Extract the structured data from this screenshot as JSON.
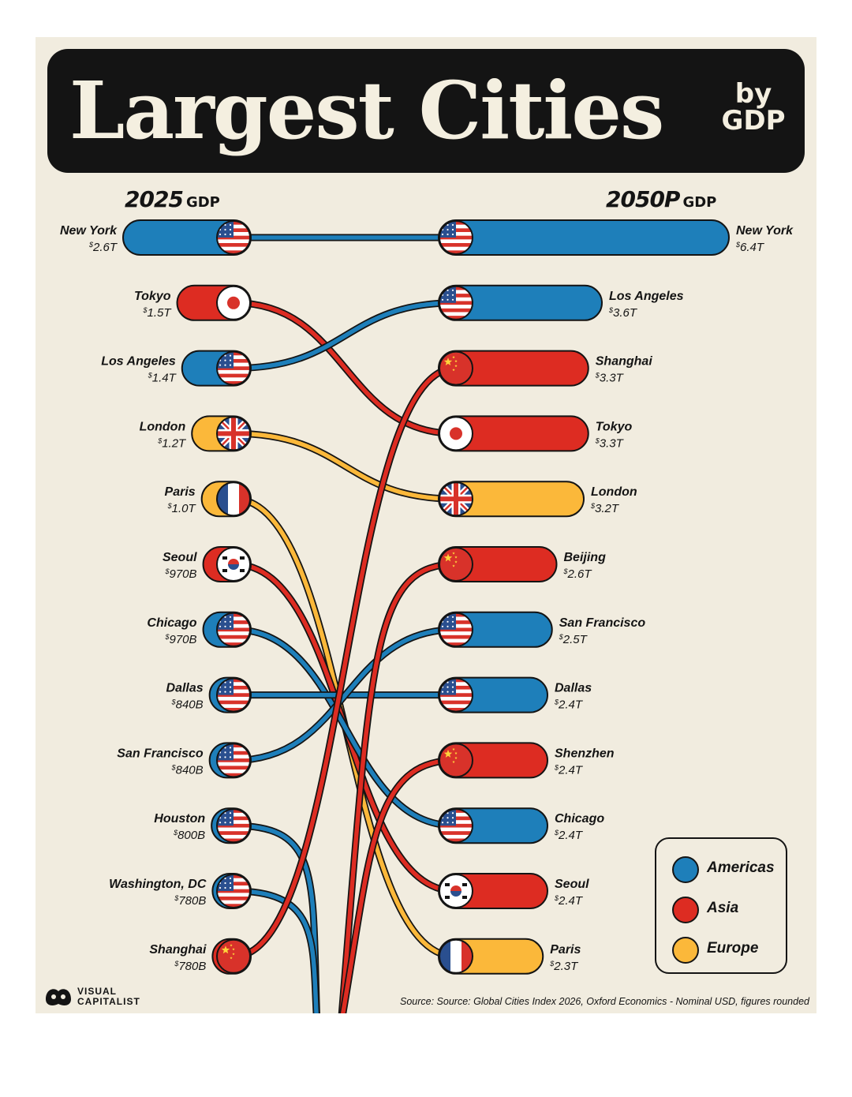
{
  "title": {
    "main": "Largest Cities",
    "sub_line1": "by",
    "sub_line2": "GDP"
  },
  "headers": {
    "left_year": "2025",
    "left_unit": "GDP",
    "right_year": "2050P",
    "right_unit": "GDP"
  },
  "colors": {
    "Americas": "#1e7fba",
    "Asia": "#dd2c22",
    "Europe": "#fbb83a"
  },
  "legend": [
    {
      "label": "Americas",
      "region": "Americas"
    },
    {
      "label": "Asia",
      "region": "Asia"
    },
    {
      "label": "Europe",
      "region": "Europe"
    }
  ],
  "source": "Source: Source: Global Cities Index 2026, Oxford Economics - Nominal USD, figures rounded",
  "brand": {
    "line1": "VISUAL",
    "line2": "CAPITALIST"
  },
  "chart_data": {
    "type": "bar",
    "title": "Largest Cities by GDP",
    "series_2025": [
      {
        "city": "New York",
        "value": 2.6,
        "label": "2.6T",
        "region": "Americas",
        "flag": "us-flag-icon"
      },
      {
        "city": "Tokyo",
        "value": 1.5,
        "label": "1.5T",
        "region": "Asia",
        "flag": "japan-flag-icon"
      },
      {
        "city": "Los Angeles",
        "value": 1.4,
        "label": "1.4T",
        "region": "Americas",
        "flag": "us-flag-icon"
      },
      {
        "city": "London",
        "value": 1.2,
        "label": "1.2T",
        "region": "Europe",
        "flag": "uk-flag-icon"
      },
      {
        "city": "Paris",
        "value": 1.0,
        "label": "1.0T",
        "region": "Europe",
        "flag": "france-flag-icon"
      },
      {
        "city": "Seoul",
        "value": 0.97,
        "label": "970B",
        "region": "Asia",
        "flag": "korea-flag-icon"
      },
      {
        "city": "Chicago",
        "value": 0.97,
        "label": "970B",
        "region": "Americas",
        "flag": "us-flag-icon"
      },
      {
        "city": "Dallas",
        "value": 0.84,
        "label": "840B",
        "region": "Americas",
        "flag": "us-flag-icon"
      },
      {
        "city": "San Francisco",
        "value": 0.84,
        "label": "840B",
        "region": "Americas",
        "flag": "us-flag-icon"
      },
      {
        "city": "Houston",
        "value": 0.8,
        "label": "800B",
        "region": "Americas",
        "flag": "us-flag-icon"
      },
      {
        "city": "Washington, DC",
        "value": 0.78,
        "label": "780B",
        "region": "Americas",
        "flag": "us-flag-icon"
      },
      {
        "city": "Shanghai",
        "value": 0.78,
        "label": "780B",
        "region": "Asia",
        "flag": "china-flag-icon"
      }
    ],
    "series_2050": [
      {
        "city": "New York",
        "value": 6.4,
        "label": "6.4T",
        "region": "Americas",
        "flag": "us-flag-icon"
      },
      {
        "city": "Los Angeles",
        "value": 3.6,
        "label": "3.6T",
        "region": "Americas",
        "flag": "us-flag-icon"
      },
      {
        "city": "Shanghai",
        "value": 3.3,
        "label": "3.3T",
        "region": "Asia",
        "flag": "china-flag-icon"
      },
      {
        "city": "Tokyo",
        "value": 3.3,
        "label": "3.3T",
        "region": "Asia",
        "flag": "japan-flag-icon"
      },
      {
        "city": "London",
        "value": 3.2,
        "label": "3.2T",
        "region": "Europe",
        "flag": "uk-flag-icon"
      },
      {
        "city": "Beijing",
        "value": 2.6,
        "label": "2.6T",
        "region": "Asia",
        "flag": "china-flag-icon"
      },
      {
        "city": "San Francisco",
        "value": 2.5,
        "label": "2.5T",
        "region": "Americas",
        "flag": "us-flag-icon"
      },
      {
        "city": "Dallas",
        "value": 2.4,
        "label": "2.4T",
        "region": "Americas",
        "flag": "us-flag-icon"
      },
      {
        "city": "Shenzhen",
        "value": 2.4,
        "label": "2.4T",
        "region": "Asia",
        "flag": "china-flag-icon"
      },
      {
        "city": "Chicago",
        "value": 2.4,
        "label": "2.4T",
        "region": "Americas",
        "flag": "us-flag-icon"
      },
      {
        "city": "Seoul",
        "value": 2.4,
        "label": "2.4T",
        "region": "Asia",
        "flag": "korea-flag-icon"
      },
      {
        "city": "Paris",
        "value": 2.3,
        "label": "2.3T",
        "region": "Europe",
        "flag": "france-flag-icon"
      }
    ]
  }
}
